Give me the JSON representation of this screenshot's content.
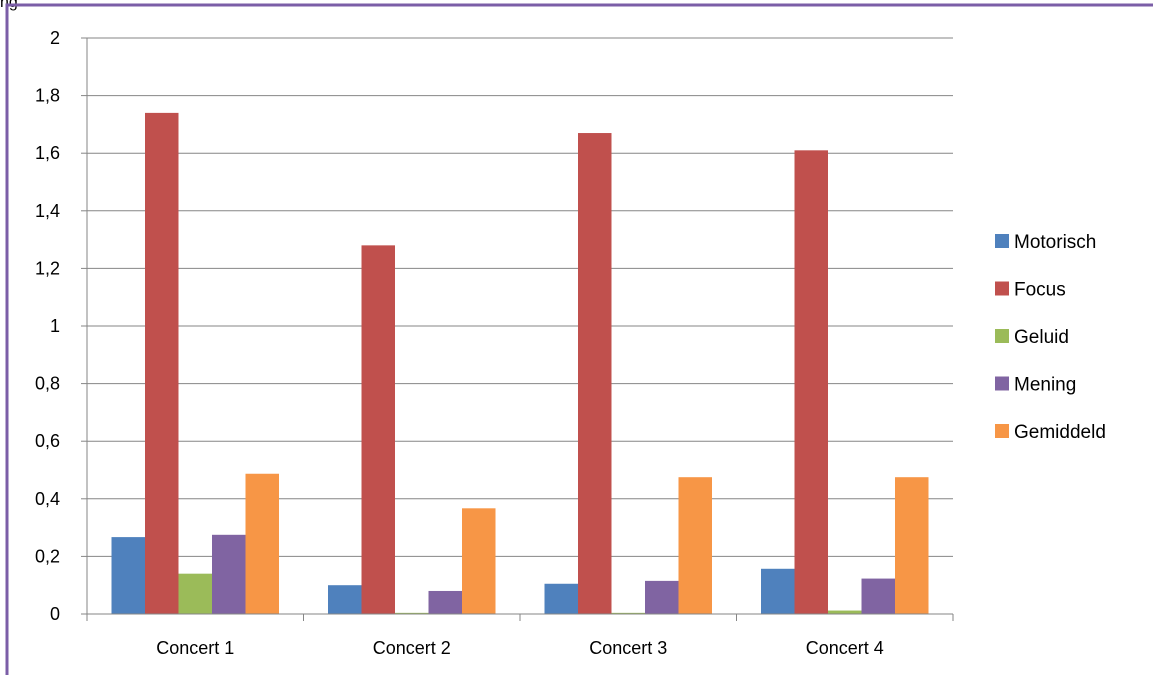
{
  "header": {
    "text": "ng"
  },
  "chart_data": {
    "type": "bar",
    "categories": [
      "Concert 1",
      "Concert 2",
      "Concert 3",
      "Concert 4"
    ],
    "series": [
      {
        "name": "Motorisch",
        "color": "#4f81bd",
        "values": [
          0.267,
          0.1,
          0.105,
          0.157
        ]
      },
      {
        "name": "Focus",
        "color": "#c0504d",
        "values": [
          1.74,
          1.28,
          1.67,
          1.61
        ]
      },
      {
        "name": "Geluid",
        "color": "#9bbb59",
        "values": [
          0.14,
          0.004,
          0.004,
          0.012
        ]
      },
      {
        "name": "Mening",
        "color": "#8064a2",
        "values": [
          0.275,
          0.08,
          0.115,
          0.123
        ]
      },
      {
        "name": "Gemiddeld",
        "color": "#f79646",
        "values": [
          0.487,
          0.367,
          0.475,
          0.475
        ]
      }
    ],
    "y_ticks": [
      "0",
      "0,2",
      "0,4",
      "0,6",
      "0,8",
      "1",
      "1,2",
      "1,4",
      "1,6",
      "1,8",
      "2"
    ],
    "ylim": [
      0,
      2
    ],
    "grid": true,
    "legend_position": "right",
    "border_color": "#7b5ea7"
  }
}
